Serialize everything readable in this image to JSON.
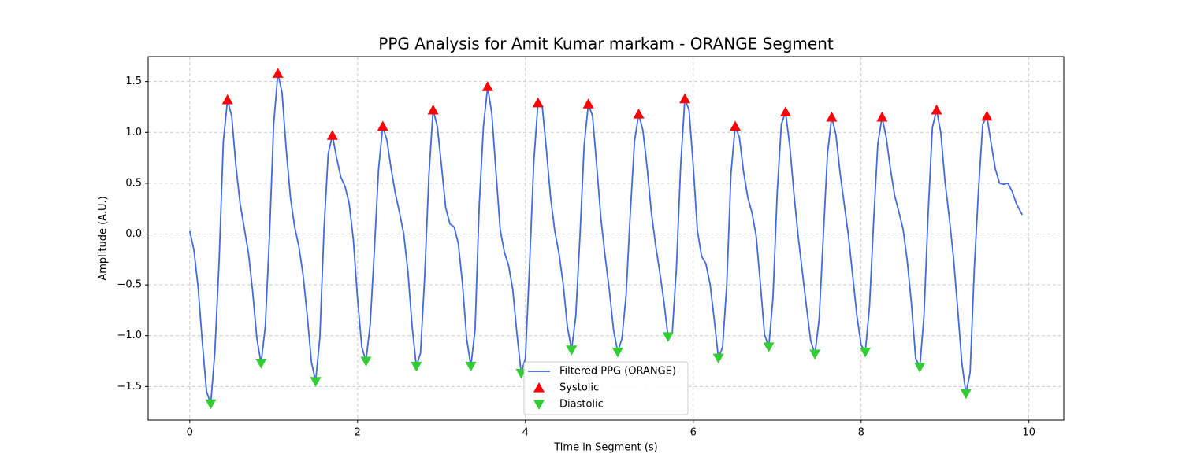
{
  "chart_data": {
    "type": "line",
    "title": "PPG Analysis for Amit Kumar markam - ORANGE Segment",
    "xlabel": "Time in Segment (s)",
    "ylabel": "Amplitude (A.U.)",
    "xlim": [
      -0.496,
      10.416
    ],
    "ylim": [
      -1.83,
      1.745
    ],
    "xticks": [
      0,
      2,
      4,
      6,
      8,
      10
    ],
    "yticks": [
      {
        "value": -1.5,
        "label": "−1.5"
      },
      {
        "value": -1.0,
        "label": "−1.0"
      },
      {
        "value": -0.5,
        "label": "−0.5"
      },
      {
        "value": 0.0,
        "label": "0.0"
      },
      0.5,
      {
        "value": 1.0,
        "label": "1.0"
      },
      {
        "value": 1.5,
        "label": "1.5"
      }
    ],
    "grid": true,
    "legend": "lower center",
    "series": [
      {
        "name": "Filtered PPG (ORANGE)",
        "color": "#4169e1",
        "x": [
          0,
          0.05,
          0.1,
          0.15,
          0.2,
          0.25,
          0.3,
          0.35,
          0.4,
          0.45,
          0.5,
          0.55,
          0.6,
          0.7,
          0.75,
          0.8,
          0.85,
          0.9,
          0.95,
          1.0,
          1.05,
          1.1,
          1.15,
          1.2,
          1.25,
          1.3,
          1.35,
          1.4,
          1.45,
          1.5,
          1.55,
          1.6,
          1.65,
          1.7,
          1.75,
          1.8,
          1.85,
          1.9,
          1.95,
          2.0,
          2.05,
          2.1,
          2.15,
          2.2,
          2.25,
          2.3,
          2.35,
          2.4,
          2.45,
          2.5,
          2.55,
          2.6,
          2.65,
          2.7,
          2.75,
          2.8,
          2.85,
          2.9,
          2.95,
          3.0,
          3.05,
          3.1,
          3.15,
          3.2,
          3.25,
          3.3,
          3.35,
          3.4,
          3.45,
          3.5,
          3.55,
          3.6,
          3.65,
          3.7,
          3.75,
          3.8,
          3.85,
          3.9,
          3.95,
          4.0,
          4.05,
          4.1,
          4.15,
          4.2,
          4.25,
          4.3,
          4.35,
          4.4,
          4.45,
          4.5,
          4.55,
          4.6,
          4.65,
          4.7,
          4.75,
          4.8,
          4.85,
          4.9,
          4.95,
          5.0,
          5.05,
          5.1,
          5.15,
          5.2,
          5.25,
          5.3,
          5.35,
          5.4,
          5.45,
          5.5,
          5.55,
          5.6,
          5.65,
          5.7,
          5.75,
          5.8,
          5.85,
          5.9,
          5.95,
          6.0,
          6.05,
          6.1,
          6.15,
          6.2,
          6.25,
          6.3,
          6.35,
          6.4,
          6.45,
          6.5,
          6.55,
          6.6,
          6.65,
          6.7,
          6.75,
          6.8,
          6.85,
          6.9,
          6.95,
          7.0,
          7.05,
          7.1,
          7.15,
          7.2,
          7.25,
          7.3,
          7.35,
          7.4,
          7.45,
          7.5,
          7.55,
          7.6,
          7.65,
          7.7,
          7.75,
          7.8,
          7.85,
          7.9,
          7.95,
          8.0,
          8.05,
          8.1,
          8.15,
          8.2,
          8.25,
          8.3,
          8.35,
          8.4,
          8.45,
          8.5,
          8.55,
          8.6,
          8.65,
          8.7,
          8.75,
          8.8,
          8.85,
          8.9,
          8.95,
          9.0,
          9.05,
          9.1,
          9.15,
          9.2,
          9.25,
          9.3,
          9.35,
          9.4,
          9.45,
          9.5,
          9.55,
          9.6,
          9.65,
          9.7,
          9.75,
          9.8,
          9.85,
          9.92
        ],
        "values": [
          0.03,
          -0.16,
          -0.53,
          -1.07,
          -1.55,
          -1.67,
          -1.15,
          -0.26,
          0.91,
          1.32,
          1.16,
          0.67,
          0.3,
          -0.19,
          -0.57,
          -1.03,
          -1.27,
          -0.91,
          -0.02,
          1.08,
          1.58,
          1.39,
          0.83,
          0.36,
          0.07,
          -0.12,
          -0.4,
          -0.8,
          -1.26,
          -1.45,
          -1.02,
          0.05,
          0.79,
          0.97,
          0.75,
          0.56,
          0.47,
          0.3,
          -0.06,
          -0.64,
          -1.11,
          -1.25,
          -0.89,
          -0.16,
          0.64,
          1.06,
          0.92,
          0.64,
          0.4,
          0.21,
          0,
          -0.37,
          -0.91,
          -1.3,
          -1.17,
          -0.41,
          0.58,
          1.22,
          1.06,
          0.67,
          0.26,
          0.1,
          0.07,
          -0.09,
          -0.49,
          -1.03,
          -1.3,
          -0.94,
          0.29,
          1.06,
          1.45,
          1.18,
          0.6,
          0.04,
          -0.18,
          -0.31,
          -0.55,
          -0.99,
          -1.37,
          -1.22,
          -0.29,
          0.71,
          1.29,
          1.26,
          0.83,
          0.36,
          0.03,
          -0.19,
          -0.49,
          -0.91,
          -1.14,
          -0.81,
          -0.02,
          0.87,
          1.28,
          1.16,
          0.67,
          0.15,
          -0.22,
          -0.55,
          -0.94,
          -1.16,
          -1.03,
          -0.6,
          0.21,
          0.91,
          1.18,
          1.02,
          0.66,
          0.22,
          -0.1,
          -0.37,
          -0.66,
          -1.01,
          -0.97,
          -0.33,
          0.67,
          1.33,
          1.22,
          0.67,
          0.03,
          -0.22,
          -0.29,
          -0.49,
          -0.84,
          -1.22,
          -1.11,
          -0.49,
          0.6,
          1.06,
          0.95,
          0.61,
          0.36,
          0.21,
          -0.02,
          -0.49,
          -0.99,
          -1.11,
          -0.63,
          0.4,
          1.08,
          1.2,
          0.87,
          0.4,
          -0.02,
          -0.37,
          -0.72,
          -1.05,
          -1.18,
          -0.84,
          -0.02,
          0.79,
          1.15,
          0.98,
          0.6,
          0.29,
          -0.02,
          -0.41,
          -0.8,
          -1.09,
          -1.16,
          -0.72,
          0.13,
          0.89,
          1.15,
          0.95,
          0.64,
          0.38,
          0.22,
          0.05,
          -0.26,
          -0.68,
          -1.22,
          -1.31,
          -0.8,
          0.21,
          1.05,
          1.22,
          1.0,
          0.52,
          0.17,
          -0.22,
          -0.72,
          -1.26,
          -1.57,
          -1.36,
          -0.33,
          0.44,
          1.08,
          1.16,
          0.89,
          0.64,
          0.5,
          0.49,
          0.5,
          0.42,
          0.3,
          0.19
        ]
      },
      {
        "name": "Systolic",
        "color": "#ff0000",
        "marker": "up",
        "x": [
          0.45,
          1.05,
          1.7,
          2.3,
          2.9,
          3.55,
          4.15,
          4.75,
          5.35,
          5.9,
          6.5,
          7.1,
          7.65,
          8.25,
          8.9,
          9.5
        ],
        "values": [
          1.32,
          1.58,
          0.97,
          1.06,
          1.22,
          1.45,
          1.29,
          1.28,
          1.18,
          1.33,
          1.06,
          1.2,
          1.15,
          1.15,
          1.22,
          1.16
        ]
      },
      {
        "name": "Diastolic",
        "color": "#32cd32",
        "marker": "down",
        "x": [
          0.25,
          0.85,
          1.5,
          2.1,
          2.7,
          3.35,
          3.95,
          4.55,
          5.1,
          5.7,
          6.3,
          6.9,
          7.45,
          8.05,
          8.7,
          9.25
        ],
        "values": [
          -1.67,
          -1.27,
          -1.45,
          -1.25,
          -1.3,
          -1.3,
          -1.37,
          -1.14,
          -1.16,
          -1.01,
          -1.22,
          -1.11,
          -1.18,
          -1.16,
          -1.31,
          -1.57
        ]
      }
    ]
  }
}
